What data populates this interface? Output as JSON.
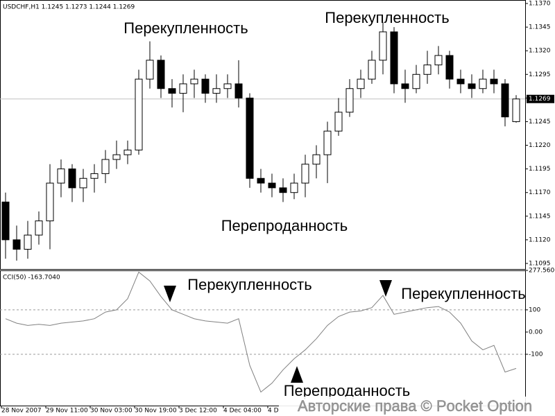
{
  "chart_data": [
    {
      "type": "candlestick",
      "title": "USDCHF,H1  1.1245 1.1273 1.1244 1.1269",
      "open": [
        1.116,
        1.112,
        1.111,
        1.1125,
        1.114,
        1.118,
        1.1195,
        1.1175,
        1.1185,
        1.119,
        1.1205,
        1.121,
        1.1215,
        1.129,
        1.131,
        1.128,
        1.1275,
        1.1285,
        1.129,
        1.1275,
        1.128,
        1.1285,
        1.127,
        1.1185,
        1.118,
        1.1175,
        1.117,
        1.118,
        1.12,
        1.121,
        1.1235,
        1.1255,
        1.128,
        1.129,
        1.131,
        1.134,
        1.1285,
        1.128,
        1.1295,
        1.1305,
        1.1315,
        1.129,
        1.1285,
        1.128,
        1.129,
        1.1285,
        1.1245
      ],
      "high": [
        1.117,
        1.1135,
        1.114,
        1.115,
        1.12,
        1.1205,
        1.12,
        1.1195,
        1.12,
        1.1215,
        1.1225,
        1.1225,
        1.13,
        1.133,
        1.1315,
        1.129,
        1.1295,
        1.13,
        1.1295,
        1.1295,
        1.1295,
        1.131,
        1.1275,
        1.1195,
        1.119,
        1.1185,
        1.119,
        1.121,
        1.122,
        1.1245,
        1.127,
        1.129,
        1.13,
        1.132,
        1.135,
        1.1345,
        1.13,
        1.1305,
        1.132,
        1.1325,
        1.132,
        1.13,
        1.1295,
        1.13,
        1.13,
        1.129,
        1.1273
      ],
      "low": [
        1.11,
        1.1098,
        1.11,
        1.1115,
        1.111,
        1.1165,
        1.116,
        1.116,
        1.117,
        1.118,
        1.1195,
        1.12,
        1.121,
        1.128,
        1.127,
        1.126,
        1.1255,
        1.127,
        1.1265,
        1.1265,
        1.127,
        1.126,
        1.1175,
        1.117,
        1.1165,
        1.116,
        1.1163,
        1.1165,
        1.1185,
        1.118,
        1.123,
        1.125,
        1.127,
        1.1285,
        1.1295,
        1.1275,
        1.1265,
        1.1275,
        1.1285,
        1.1295,
        1.128,
        1.1275,
        1.127,
        1.1275,
        1.1275,
        1.124,
        1.1244
      ],
      "close": [
        1.112,
        1.111,
        1.1125,
        1.114,
        1.118,
        1.1195,
        1.1175,
        1.1185,
        1.119,
        1.1205,
        1.121,
        1.1215,
        1.129,
        1.131,
        1.128,
        1.1275,
        1.1285,
        1.129,
        1.1275,
        1.128,
        1.1285,
        1.127,
        1.1185,
        1.118,
        1.1175,
        1.117,
        1.118,
        1.12,
        1.121,
        1.1235,
        1.1255,
        1.128,
        1.129,
        1.131,
        1.134,
        1.1285,
        1.128,
        1.1295,
        1.1305,
        1.1315,
        1.129,
        1.1285,
        1.128,
        1.129,
        1.1285,
        1.125,
        1.1269
      ],
      "ylim": [
        1.10891,
        1.13737
      ],
      "yticks": [
        {
          "value": 1.137,
          "label": "1.1370"
        },
        1.1345,
        {
          "value": 1.132,
          "label": "1.1320"
        },
        1.1295,
        {
          "value": 1.127,
          "label": "1.1270"
        },
        1.1245,
        {
          "value": 1.122,
          "label": "1.1220"
        },
        1.1195,
        {
          "value": 1.117,
          "label": "1.1170"
        },
        1.1145,
        {
          "value": 1.112,
          "label": "1.1120"
        },
        1.1095
      ],
      "last_price": 1.1269,
      "annotations": [
        "Перекупленность",
        "Перекупленность",
        "Перепроданность"
      ]
    },
    {
      "type": "line",
      "title": "CCI(50) -163.7040",
      "categories": [
        "28 Nov 2007",
        null,
        null,
        null,
        "29 Nov 11:00",
        null,
        null,
        null,
        "30 Nov 03:00",
        null,
        null,
        null,
        "30 Nov 19:00",
        null,
        null,
        null,
        "3 Dec 12:00",
        null,
        null,
        null,
        "4 Dec 04:00",
        null,
        null,
        null,
        "4 D",
        null,
        null,
        null,
        null,
        null,
        null,
        null,
        null,
        null,
        null,
        null,
        null,
        null,
        null,
        null,
        null,
        null,
        null,
        null,
        null,
        null,
        null
      ],
      "series": [
        {
          "name": "CCI(50)",
          "color": "#808080",
          "values": [
            60,
            40,
            30,
            35,
            30,
            40,
            45,
            50,
            60,
            90,
            100,
            150,
            270,
            230,
            160,
            100,
            80,
            60,
            50,
            45,
            40,
            60,
            -150,
            -270,
            -230,
            -170,
            -120,
            -80,
            -30,
            30,
            70,
            90,
            95,
            110,
            165,
            80,
            90,
            100,
            110,
            115,
            90,
            40,
            -40,
            -80,
            -60,
            -180,
            -163.704
          ]
        }
      ],
      "ylim": [
        -331,
        277.5606
      ],
      "yticks": [
        277.5606,
        100,
        {
          "value": 0,
          "label": "0.00"
        },
        -100
      ],
      "levels": [
        100,
        -100
      ],
      "annotations": [
        "Перекупленность",
        "Перекупленность",
        "Перепроданность"
      ]
    }
  ],
  "watermark": "Авторские права © Pocket Option"
}
